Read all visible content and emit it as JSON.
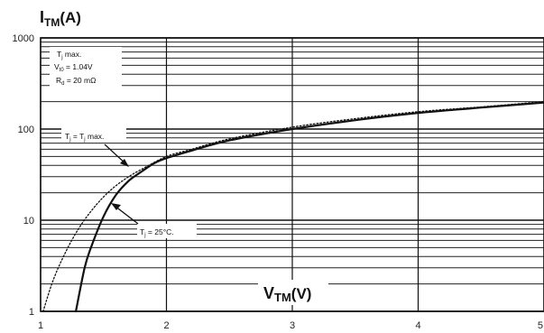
{
  "chart_data": {
    "type": "line",
    "ylabel": {
      "main": "I",
      "sub": "TM",
      "unit": "(A)"
    },
    "xlabel": {
      "main": "V",
      "sub": "TM",
      "unit": "(V)"
    },
    "x_scale": "linear",
    "y_scale": "log",
    "xlim": [
      1,
      5
    ],
    "ylim": [
      1,
      1000
    ],
    "x_ticks": [
      1,
      2,
      3,
      4,
      5
    ],
    "y_ticks": [
      1,
      10,
      100,
      1000
    ],
    "x_tick_labels": [
      "1",
      "2",
      "3",
      "4",
      "5"
    ],
    "y_tick_labels": [
      "1",
      "10",
      "100",
      "1000"
    ],
    "grid": true,
    "parameters": {
      "line1": {
        "main": "T",
        "sub": "j",
        "rest": " max."
      },
      "line2": {
        "main": "V",
        "sub": "t0",
        "rest": " = 1.04V"
      },
      "line3": {
        "main": "R",
        "sub": "d",
        "rest": " = 20 mΩ"
      }
    },
    "series": [
      {
        "label": {
          "a": "T",
          "a_sub": "j",
          "b": " = T",
          "b_sub": "j",
          "rest": " max."
        },
        "style": "dotted",
        "color": "#111111",
        "x": [
          1.02,
          1.1,
          1.2,
          1.3,
          1.4,
          1.5,
          1.6,
          1.7,
          1.8,
          2.0,
          2.2,
          2.5,
          3.0,
          3.5,
          4.0,
          4.5,
          5.0
        ],
        "y": [
          1,
          2.2,
          4.5,
          8,
          12.5,
          18,
          24,
          30,
          36,
          50,
          60,
          78,
          105,
          130,
          155,
          175,
          200
        ]
      },
      {
        "label": {
          "a": "T",
          "a_sub": "j",
          "rest": " = 25°C."
        },
        "style": "solid",
        "color": "#111111",
        "x": [
          1.28,
          1.35,
          1.4,
          1.5,
          1.6,
          1.7,
          1.8,
          1.9,
          2.0,
          2.2,
          2.5,
          3.0,
          3.5,
          4.0,
          4.5,
          5.0
        ],
        "y": [
          1,
          3,
          5,
          11,
          19,
          27,
          34,
          42,
          48,
          58,
          75,
          100,
          125,
          150,
          172,
          195
        ]
      }
    ]
  }
}
